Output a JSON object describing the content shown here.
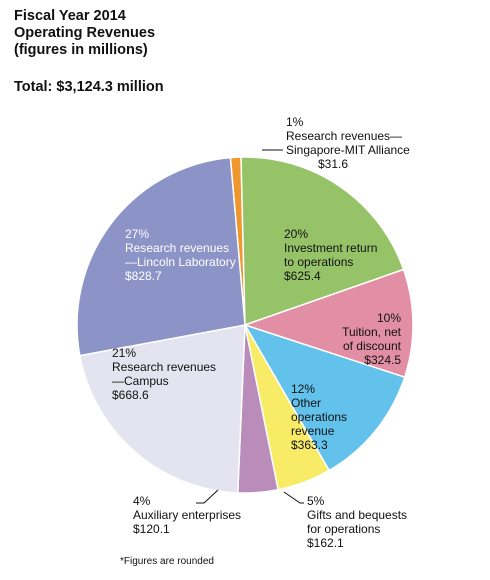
{
  "header": {
    "title_lines": [
      "Fiscal Year 2014",
      "Operating Revenues",
      "(figures in millions)"
    ],
    "total": "Total: $3,124.3 million"
  },
  "footnote": "*Figures are rounded",
  "chart_data": {
    "type": "pie",
    "title": "Fiscal Year 2014 Operating Revenues (figures in millions)",
    "total": 3124.3,
    "unit": "millions",
    "slices": [
      {
        "pct": "1%",
        "label_lines": [
          "Research revenues—",
          "Singapore-MIT Alliance"
        ],
        "amount": "$31.6",
        "value": 31.6,
        "color": "#f0962e",
        "text_color": "#111111"
      },
      {
        "pct": "20%",
        "label_lines": [
          "Investment return",
          "to operations"
        ],
        "amount": "$625.4",
        "value": 625.4,
        "color": "#97c368",
        "text_color": "#111111"
      },
      {
        "pct": "10%",
        "label_lines": [
          "Tuition, net",
          "of discount"
        ],
        "amount": "$324.5",
        "value": 324.5,
        "color": "#e28fa6",
        "text_color": "#111111"
      },
      {
        "pct": "12%",
        "label_lines": [
          "Other",
          "operations",
          "revenue"
        ],
        "amount": "$363.3",
        "value": 363.3,
        "color": "#62c2ec",
        "text_color": "#111111"
      },
      {
        "pct": "5%",
        "label_lines": [
          "Gifts and bequests",
          "for operations"
        ],
        "amount": "$162.1",
        "value": 162.1,
        "color": "#f8ec67",
        "text_color": "#111111"
      },
      {
        "pct": "4%",
        "label_lines": [
          "Auxiliary enterprises"
        ],
        "amount": "$120.1",
        "value": 120.1,
        "color": "#b98cba",
        "text_color": "#111111"
      },
      {
        "pct": "21%",
        "label_lines": [
          "Research revenues",
          "—Campus"
        ],
        "amount": "$668.6",
        "value": 668.6,
        "color": "#e3e4f0",
        "text_color": "#111111"
      },
      {
        "pct": "27%",
        "label_lines": [
          "Research revenues",
          "—Lincoln Laboratory"
        ],
        "amount": "$828.7",
        "value": 828.7,
        "color": "#8c93c6",
        "text_color": "#ffffff"
      }
    ]
  }
}
